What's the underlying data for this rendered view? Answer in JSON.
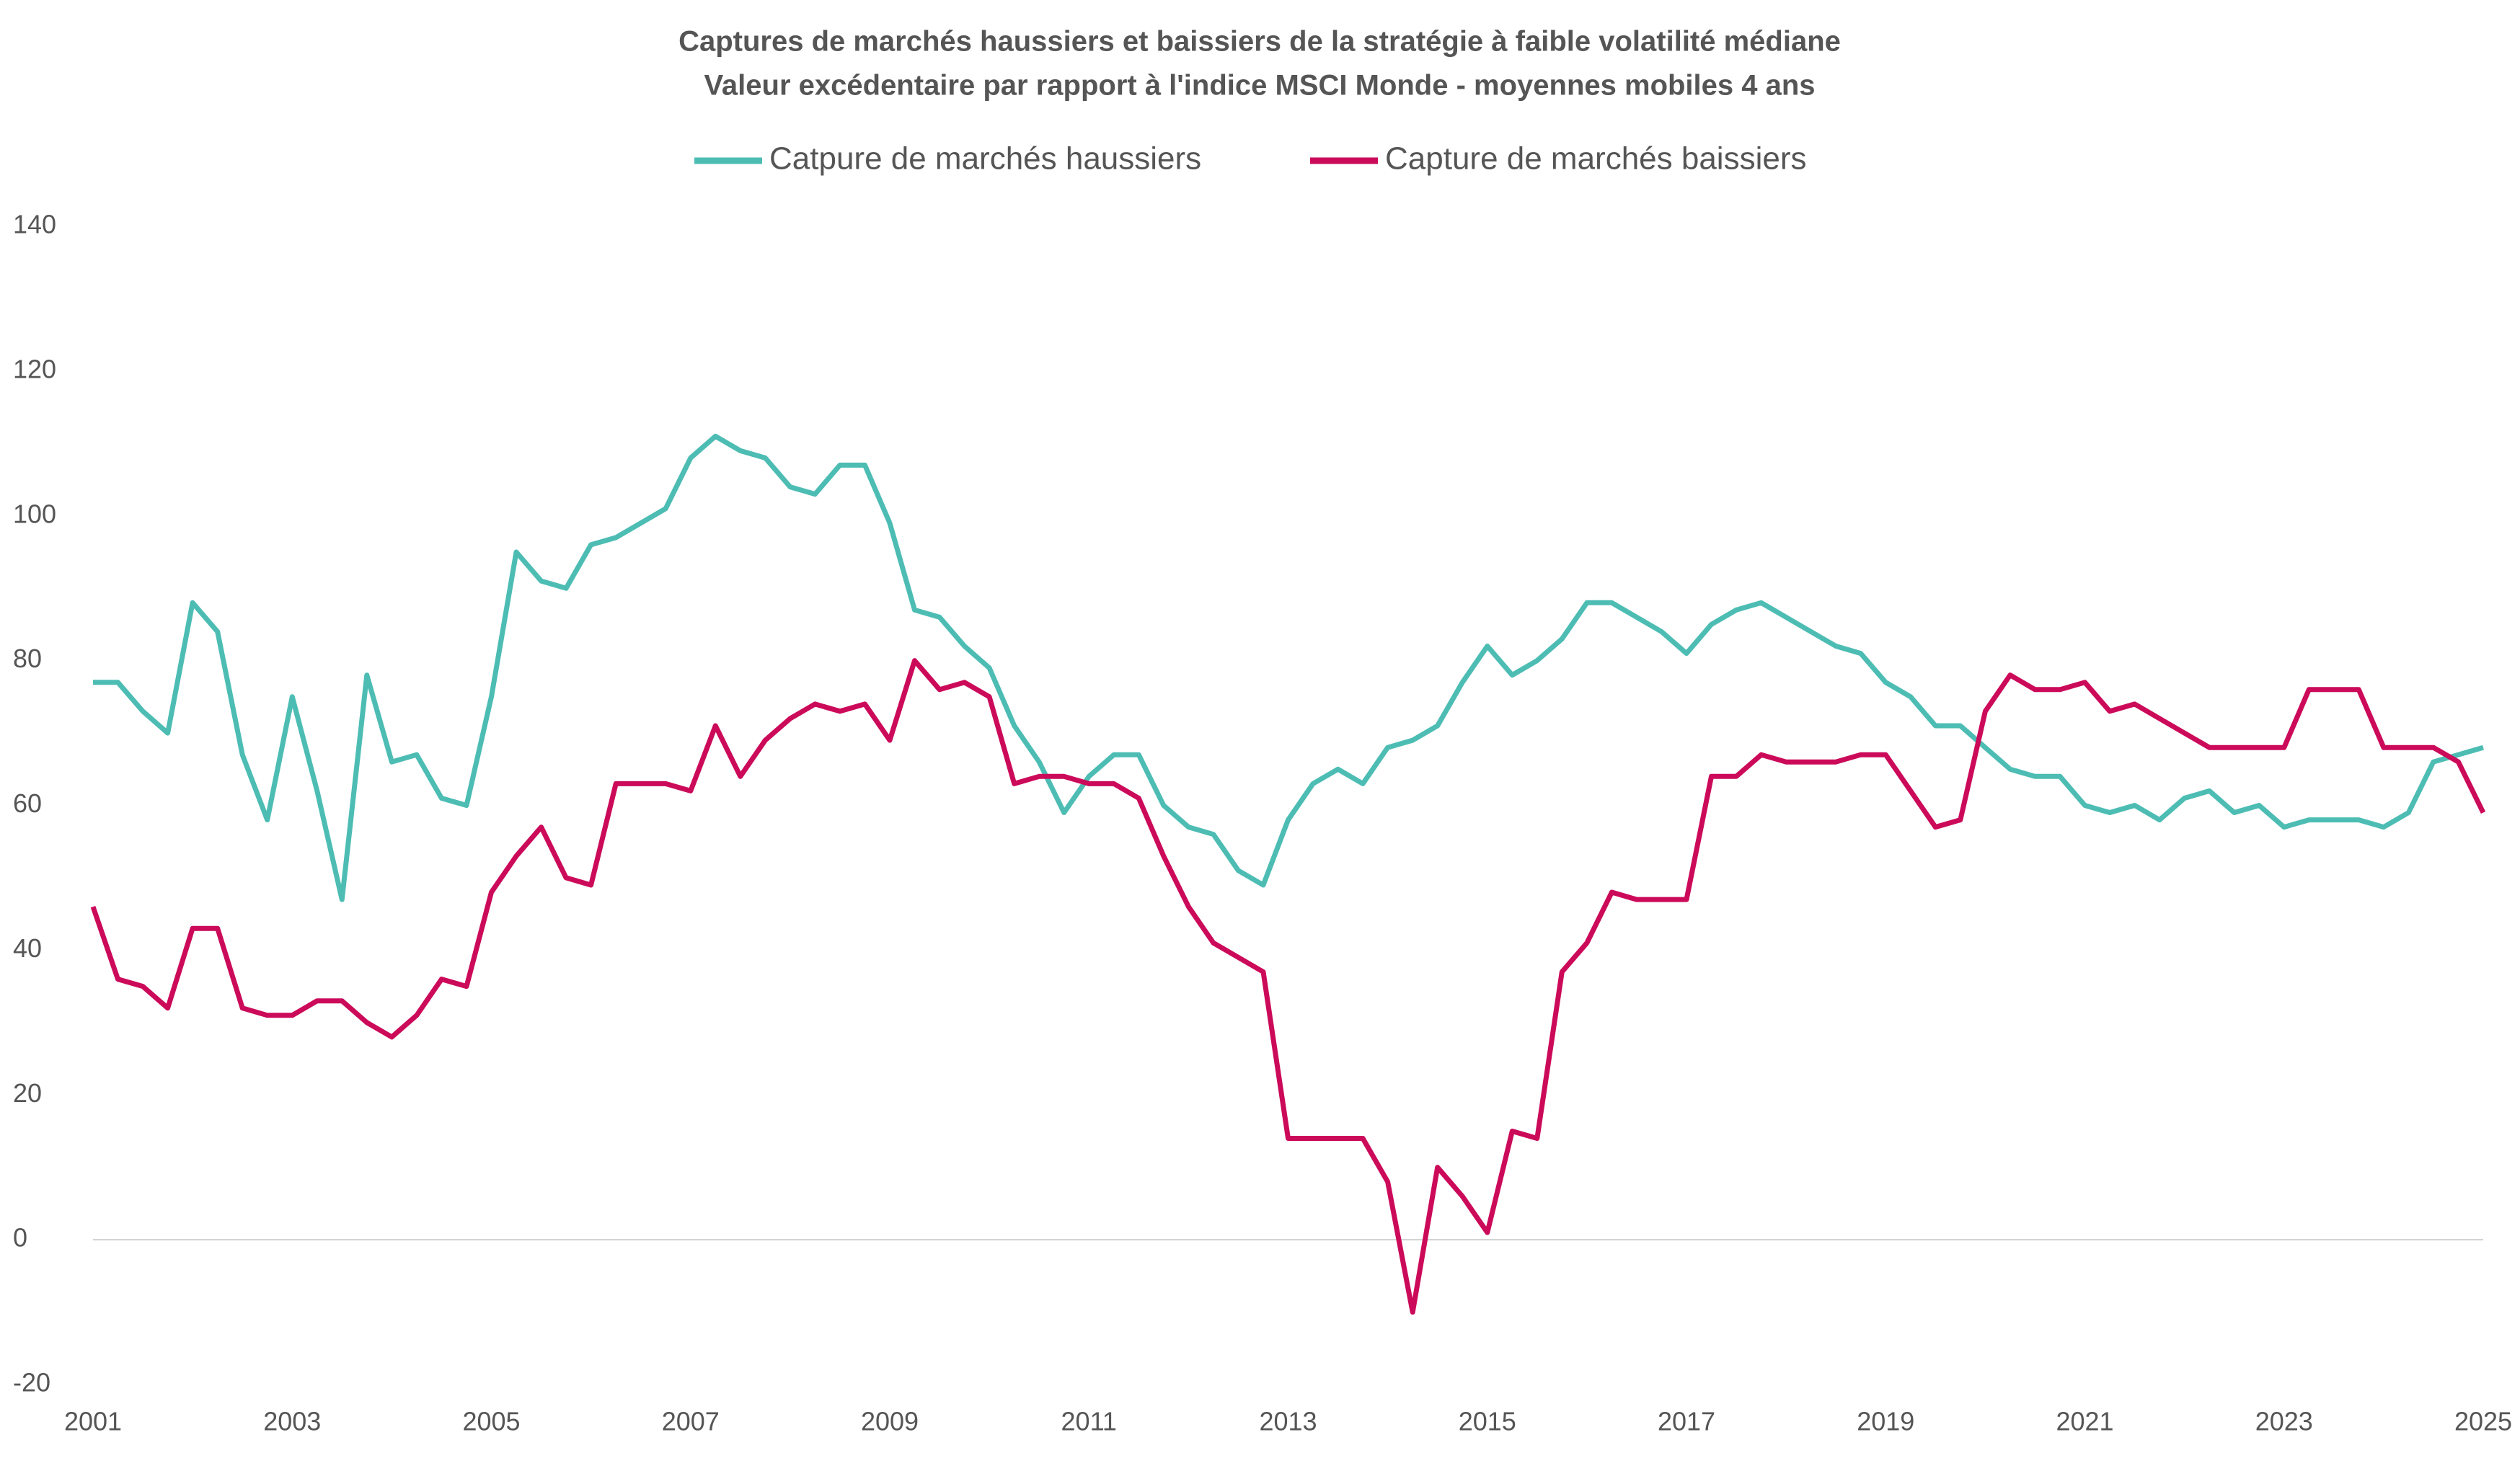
{
  "chart_data": {
    "type": "line",
    "title": "Captures de marchés haussiers et baissiers de la stratégie à faible volatilité médiane",
    "subtitle": "Valeur excédentaire par rapport à l'indice MSCI Monde - moyennes mobiles 4 ans",
    "x": [
      2001,
      2001.25,
      2001.5,
      2001.75,
      2002,
      2002.25,
      2002.5,
      2002.75,
      2003,
      2003.25,
      2003.5,
      2003.75,
      2004,
      2004.25,
      2004.5,
      2004.75,
      2005,
      2005.25,
      2005.5,
      2005.75,
      2006,
      2006.25,
      2006.5,
      2006.75,
      2007,
      2007.25,
      2007.5,
      2007.75,
      2008,
      2008.25,
      2008.5,
      2008.75,
      2009,
      2009.25,
      2009.5,
      2009.75,
      2010,
      2010.25,
      2010.5,
      2010.75,
      2011,
      2011.25,
      2011.5,
      2011.75,
      2012,
      2012.25,
      2012.5,
      2012.75,
      2013,
      2013.25,
      2013.5,
      2013.75,
      2014,
      2014.25,
      2014.5,
      2014.75,
      2015,
      2015.25,
      2015.5,
      2015.75,
      2016,
      2016.25,
      2016.5,
      2016.75,
      2017,
      2017.25,
      2017.5,
      2017.75,
      2018,
      2018.25,
      2018.5,
      2018.75,
      2019,
      2019.25,
      2019.5,
      2019.75,
      2020,
      2020.25,
      2020.5,
      2020.75,
      2021,
      2021.25,
      2021.5,
      2021.75,
      2022,
      2022.25,
      2022.5,
      2022.75,
      2023,
      2023.25,
      2023.5,
      2023.75,
      2024,
      2024.25,
      2024.5,
      2024.75,
      2025
    ],
    "series": [
      {
        "name": "Catpure de marchés haussiers",
        "color": "#4dbdb4",
        "values": [
          77,
          77,
          73,
          70,
          88,
          84,
          67,
          58,
          75,
          62,
          47,
          78,
          66,
          67,
          61,
          60,
          75,
          95,
          91,
          90,
          96,
          97,
          99,
          101,
          108,
          111,
          109,
          108,
          104,
          103,
          107,
          107,
          99,
          87,
          86,
          82,
          79,
          71,
          66,
          59,
          64,
          67,
          67,
          60,
          57,
          56,
          51,
          49,
          58,
          63,
          65,
          63,
          68,
          69,
          71,
          77,
          82,
          78,
          80,
          83,
          88,
          88,
          86,
          84,
          81,
          85,
          87,
          88,
          86,
          84,
          82,
          81,
          77,
          75,
          71,
          71,
          68,
          65,
          64,
          64,
          60,
          59,
          60,
          58,
          61,
          62,
          59,
          60,
          57,
          58,
          58,
          58,
          57,
          59,
          66,
          67,
          68
        ]
      },
      {
        "name": "Capture de marchés baissiers",
        "color": "#cc0a5a",
        "values": [
          46,
          36,
          35,
          32,
          43,
          43,
          32,
          31,
          31,
          33,
          33,
          30,
          28,
          31,
          36,
          35,
          48,
          53,
          57,
          50,
          49,
          63,
          63,
          63,
          62,
          71,
          64,
          69,
          72,
          74,
          73,
          74,
          69,
          80,
          76,
          77,
          75,
          63,
          64,
          64,
          63,
          63,
          61,
          53,
          46,
          41,
          39,
          37,
          14,
          14,
          14,
          14,
          8,
          -10,
          10,
          6,
          1,
          15,
          14,
          37,
          41,
          48,
          47,
          47,
          47,
          64,
          64,
          67,
          66,
          66,
          66,
          67,
          67,
          62,
          57,
          58,
          73,
          78,
          76,
          76,
          77,
          73,
          74,
          72,
          70,
          68,
          68,
          68,
          68,
          76,
          76,
          76,
          68,
          68,
          68,
          66,
          59
        ]
      }
    ],
    "xlim": [
      2001,
      2025
    ],
    "xticks": [
      2001,
      2003,
      2005,
      2007,
      2009,
      2011,
      2013,
      2015,
      2017,
      2019,
      2021,
      2023,
      2025
    ],
    "ylim": [
      -20,
      140
    ],
    "yticks": [
      -20,
      0,
      20,
      40,
      60,
      80,
      100,
      120,
      140
    ],
    "grid": false,
    "legend": "top"
  }
}
